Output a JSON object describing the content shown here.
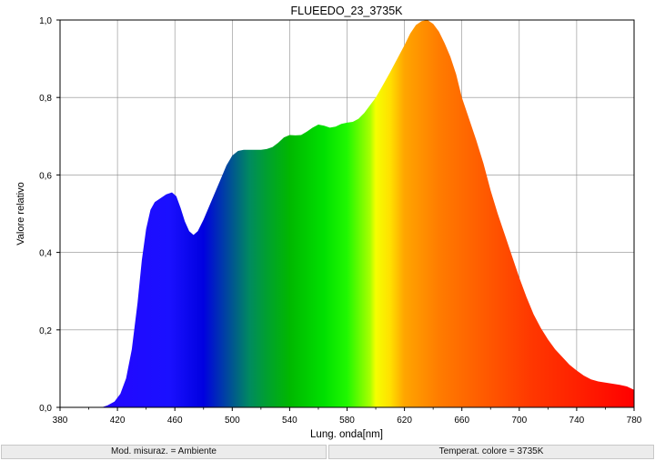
{
  "footer": {
    "mode": "Mod. misuraz. = Ambiente",
    "cct": "Temperat. colore = 3735K"
  },
  "chart_data": {
    "type": "area",
    "title": "FLUEEDO_23_3735K",
    "xlabel": "Lung. onda[nm]",
    "ylabel": "Valore relativo",
    "xlim": [
      380,
      780
    ],
    "ylim": [
      0,
      1.0
    ],
    "x_ticks": [
      380,
      420,
      460,
      500,
      540,
      580,
      620,
      660,
      700,
      740,
      780
    ],
    "y_ticks": [
      "0,0",
      "0,2",
      "0,4",
      "0,6",
      "0,8",
      "1,0"
    ],
    "grid": true,
    "fill": "visible-spectrum gradient (violet-blue to red)",
    "series": [
      {
        "x": [
          409,
          413,
          418,
          422,
          426,
          430,
          434,
          437,
          440,
          443,
          446,
          450,
          454,
          458,
          461,
          464,
          467,
          470,
          473,
          476,
          480,
          484,
          488,
          492,
          496,
          500,
          504,
          508,
          512,
          516,
          520,
          524,
          528,
          532,
          536,
          540,
          544,
          548,
          552,
          556,
          560,
          564,
          568,
          572,
          576,
          580,
          584,
          588,
          592,
          596,
          600,
          605,
          610,
          615,
          620,
          624,
          628,
          632,
          636,
          640,
          644,
          648,
          652,
          656,
          660,
          665,
          670,
          675,
          680,
          685,
          690,
          695,
          700,
          705,
          710,
          715,
          720,
          725,
          730,
          735,
          740,
          745,
          750,
          755,
          760,
          765,
          770,
          775,
          780
        ],
        "y": [
          0.0,
          0.005,
          0.015,
          0.035,
          0.075,
          0.15,
          0.27,
          0.38,
          0.46,
          0.51,
          0.53,
          0.54,
          0.55,
          0.555,
          0.545,
          0.515,
          0.48,
          0.455,
          0.445,
          0.455,
          0.485,
          0.52,
          0.555,
          0.59,
          0.625,
          0.65,
          0.662,
          0.665,
          0.665,
          0.665,
          0.665,
          0.667,
          0.672,
          0.683,
          0.697,
          0.703,
          0.702,
          0.703,
          0.712,
          0.722,
          0.73,
          0.727,
          0.722,
          0.725,
          0.732,
          0.735,
          0.737,
          0.745,
          0.76,
          0.78,
          0.8,
          0.832,
          0.865,
          0.9,
          0.935,
          0.965,
          0.987,
          0.997,
          1.0,
          0.99,
          0.97,
          0.94,
          0.905,
          0.86,
          0.8,
          0.745,
          0.69,
          0.63,
          0.56,
          0.5,
          0.445,
          0.39,
          0.335,
          0.285,
          0.24,
          0.205,
          0.175,
          0.15,
          0.13,
          0.11,
          0.095,
          0.082,
          0.072,
          0.067,
          0.064,
          0.061,
          0.058,
          0.054,
          0.045
        ]
      }
    ]
  }
}
